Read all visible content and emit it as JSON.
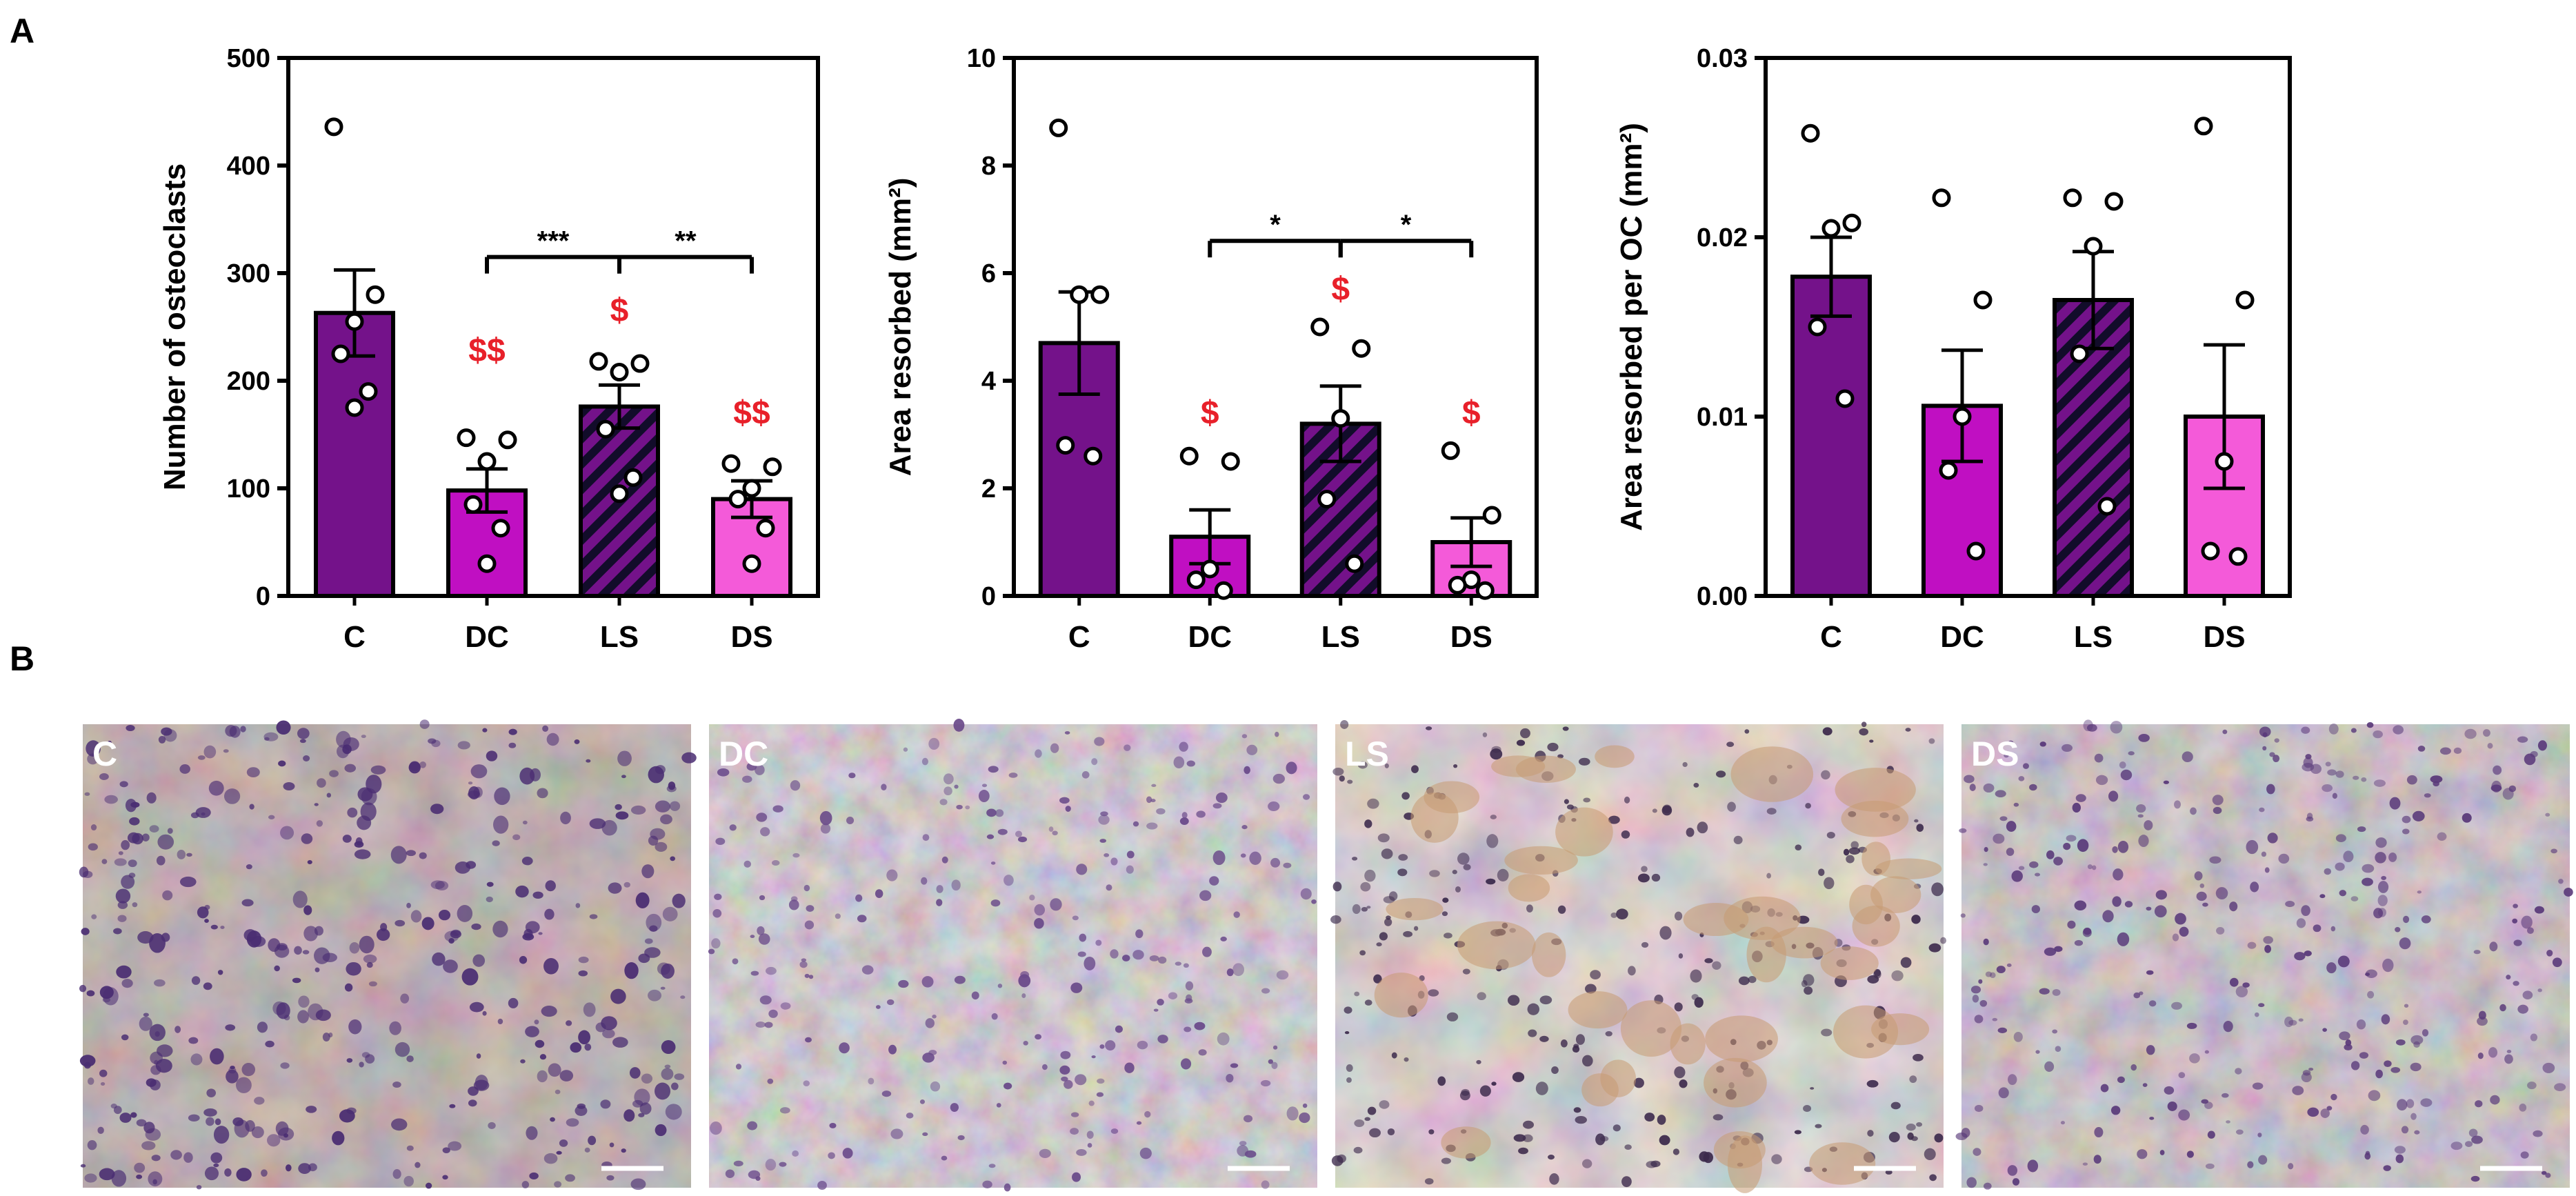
{
  "panels": {
    "a": "A",
    "b": "B"
  },
  "colors": {
    "C": "#74128a",
    "DC": "#c00fc2",
    "LS": "#74128a",
    "DS": "#f45ad9",
    "stripe": "#120c2a",
    "dollar": "#e8202a",
    "axis": "#000000"
  },
  "chart_data": [
    {
      "type": "bar",
      "title": "",
      "xlabel": "",
      "ylabel": "Number of osteoclasts",
      "categories": [
        "C",
        "DC",
        "LS",
        "DS"
      ],
      "values": [
        263,
        98,
        176,
        90
      ],
      "errors": [
        40,
        20,
        20,
        17
      ],
      "points": [
        [
          436,
          280,
          255,
          225,
          190,
          175
        ],
        [
          147,
          145,
          125,
          85,
          63,
          30
        ],
        [
          218,
          216,
          208,
          155,
          110,
          95
        ],
        [
          123,
          120,
          100,
          90,
          63,
          30
        ]
      ],
      "ylim": [
        0,
        500
      ],
      "yticks": [
        0,
        100,
        200,
        300,
        400,
        500
      ],
      "ytick_labels": [
        "0",
        "100",
        "200",
        "300",
        "400",
        "500"
      ],
      "annotations": [
        {
          "text": "$$",
          "category": "DC",
          "y": 218
        },
        {
          "text": "$",
          "category": "LS",
          "y": 255
        },
        {
          "text": "$$",
          "category": "DS",
          "y": 160
        }
      ],
      "significance": [
        {
          "from": 1,
          "to": 2,
          "text": "***",
          "y": 315
        },
        {
          "from": 2,
          "to": 3,
          "text": "**",
          "y": 315
        }
      ]
    },
    {
      "type": "bar",
      "title": "",
      "xlabel": "",
      "ylabel": "Area resorbed (mm²)",
      "categories": [
        "C",
        "DC",
        "LS",
        "DS"
      ],
      "values": [
        4.7,
        1.1,
        3.2,
        1.0
      ],
      "errors": [
        0.95,
        0.5,
        0.7,
        0.45
      ],
      "points": [
        [
          8.7,
          5.6,
          5.6,
          2.8,
          2.6
        ],
        [
          2.6,
          2.5,
          0.5,
          0.3,
          0.1
        ],
        [
          5.0,
          4.6,
          3.3,
          1.8,
          0.6
        ],
        [
          2.7,
          1.5,
          0.3,
          0.2,
          0.1
        ]
      ],
      "ylim": [
        0,
        10
      ],
      "yticks": [
        0,
        2,
        4,
        6,
        8,
        10
      ],
      "ytick_labels": [
        "0",
        "2",
        "4",
        "6",
        "8",
        "10"
      ],
      "annotations": [
        {
          "text": "$",
          "category": "DC",
          "y": 3.2
        },
        {
          "text": "$",
          "category": "LS",
          "y": 5.5
        },
        {
          "text": "$",
          "category": "DS",
          "y": 3.2
        }
      ],
      "significance": [
        {
          "from": 1,
          "to": 2,
          "text": "*",
          "y": 6.6
        },
        {
          "from": 2,
          "to": 3,
          "text": "*",
          "y": 6.6
        }
      ]
    },
    {
      "type": "bar",
      "title": "",
      "xlabel": "",
      "ylabel": "Area resorbed per OC (mm²)",
      "categories": [
        "C",
        "DC",
        "LS",
        "DS"
      ],
      "values": [
        0.0178,
        0.0106,
        0.0165,
        0.01
      ],
      "errors": [
        0.0022,
        0.0031,
        0.0027,
        0.004
      ],
      "points": [
        [
          0.0258,
          0.0208,
          0.0205,
          0.015,
          0.011
        ],
        [
          0.0222,
          0.0165,
          0.01,
          0.007,
          0.0025
        ],
        [
          0.0222,
          0.022,
          0.0195,
          0.0135,
          0.005
        ],
        [
          0.0262,
          0.0165,
          0.0075,
          0.0025,
          0.0022
        ]
      ],
      "ylim": [
        0,
        0.03
      ],
      "yticks": [
        0,
        0.01,
        0.02,
        0.03
      ],
      "ytick_labels": [
        "0.00",
        "0.01",
        "0.02",
        "0.03"
      ],
      "annotations": [],
      "significance": []
    }
  ],
  "images": [
    {
      "label": "C",
      "theme": "dense-purple"
    },
    {
      "label": "DC",
      "theme": "light-purple"
    },
    {
      "label": "LS",
      "theme": "tan-patches"
    },
    {
      "label": "DS",
      "theme": "medium-purple"
    }
  ]
}
